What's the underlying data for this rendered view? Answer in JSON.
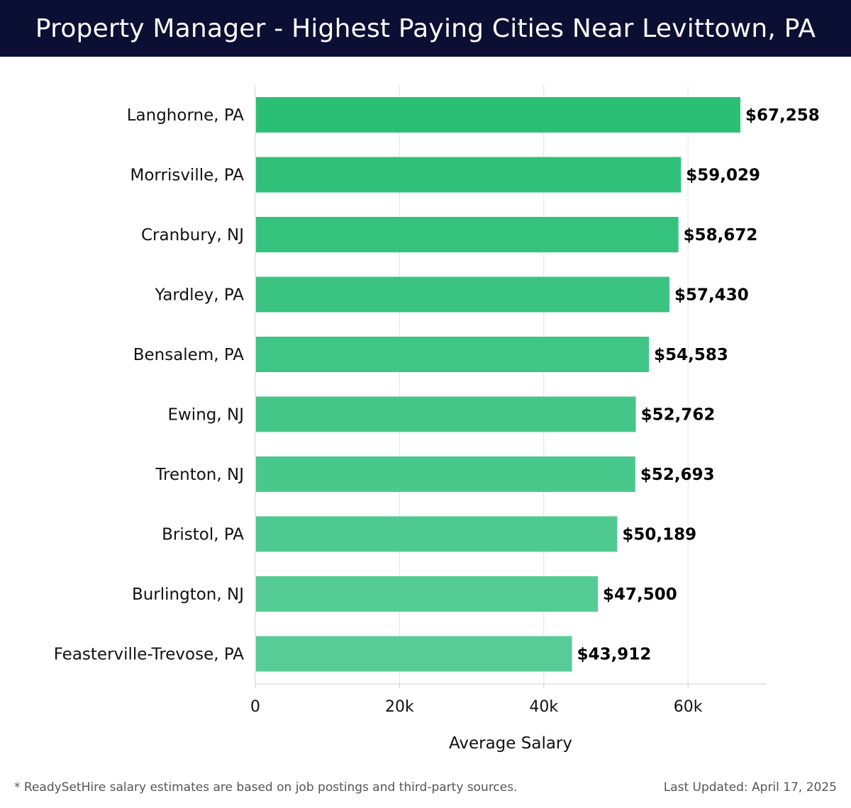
{
  "header": {
    "title": "Property Manager - Highest Paying Cities Near Levittown, PA"
  },
  "chart_data": {
    "type": "bar",
    "orientation": "horizontal",
    "title": "Property Manager - Highest Paying Cities Near Levittown, PA",
    "categories": [
      "Langhorne, PA",
      "Morrisville, PA",
      "Cranbury, NJ",
      "Yardley, PA",
      "Bensalem, PA",
      "Ewing, NJ",
      "Trenton, NJ",
      "Bristol, PA",
      "Burlington, NJ",
      "Feasterville-Trevose, PA"
    ],
    "values": [
      67258,
      59029,
      58672,
      57430,
      54583,
      52762,
      52693,
      50189,
      47500,
      43912
    ],
    "value_labels": [
      "$67,258",
      "$59,029",
      "$58,672",
      "$57,430",
      "$54,583",
      "$52,762",
      "$52,693",
      "$50,189",
      "$47,500",
      "$43,912"
    ],
    "xlabel": "Average Salary",
    "ylabel": "",
    "xlim": [
      0,
      70800
    ],
    "xticks": [
      0,
      20000,
      40000,
      60000
    ],
    "xtick_labels": [
      "0",
      "20k",
      "40k",
      "60k"
    ],
    "grid": true,
    "colors": {
      "bar_top": "#2bbf76",
      "bar_bottom": "#58cc97"
    }
  },
  "footer": {
    "note": "* ReadySetHire salary estimates are based on job postings and third-party sources.",
    "updated": "Last Updated: April 17, 2025"
  }
}
